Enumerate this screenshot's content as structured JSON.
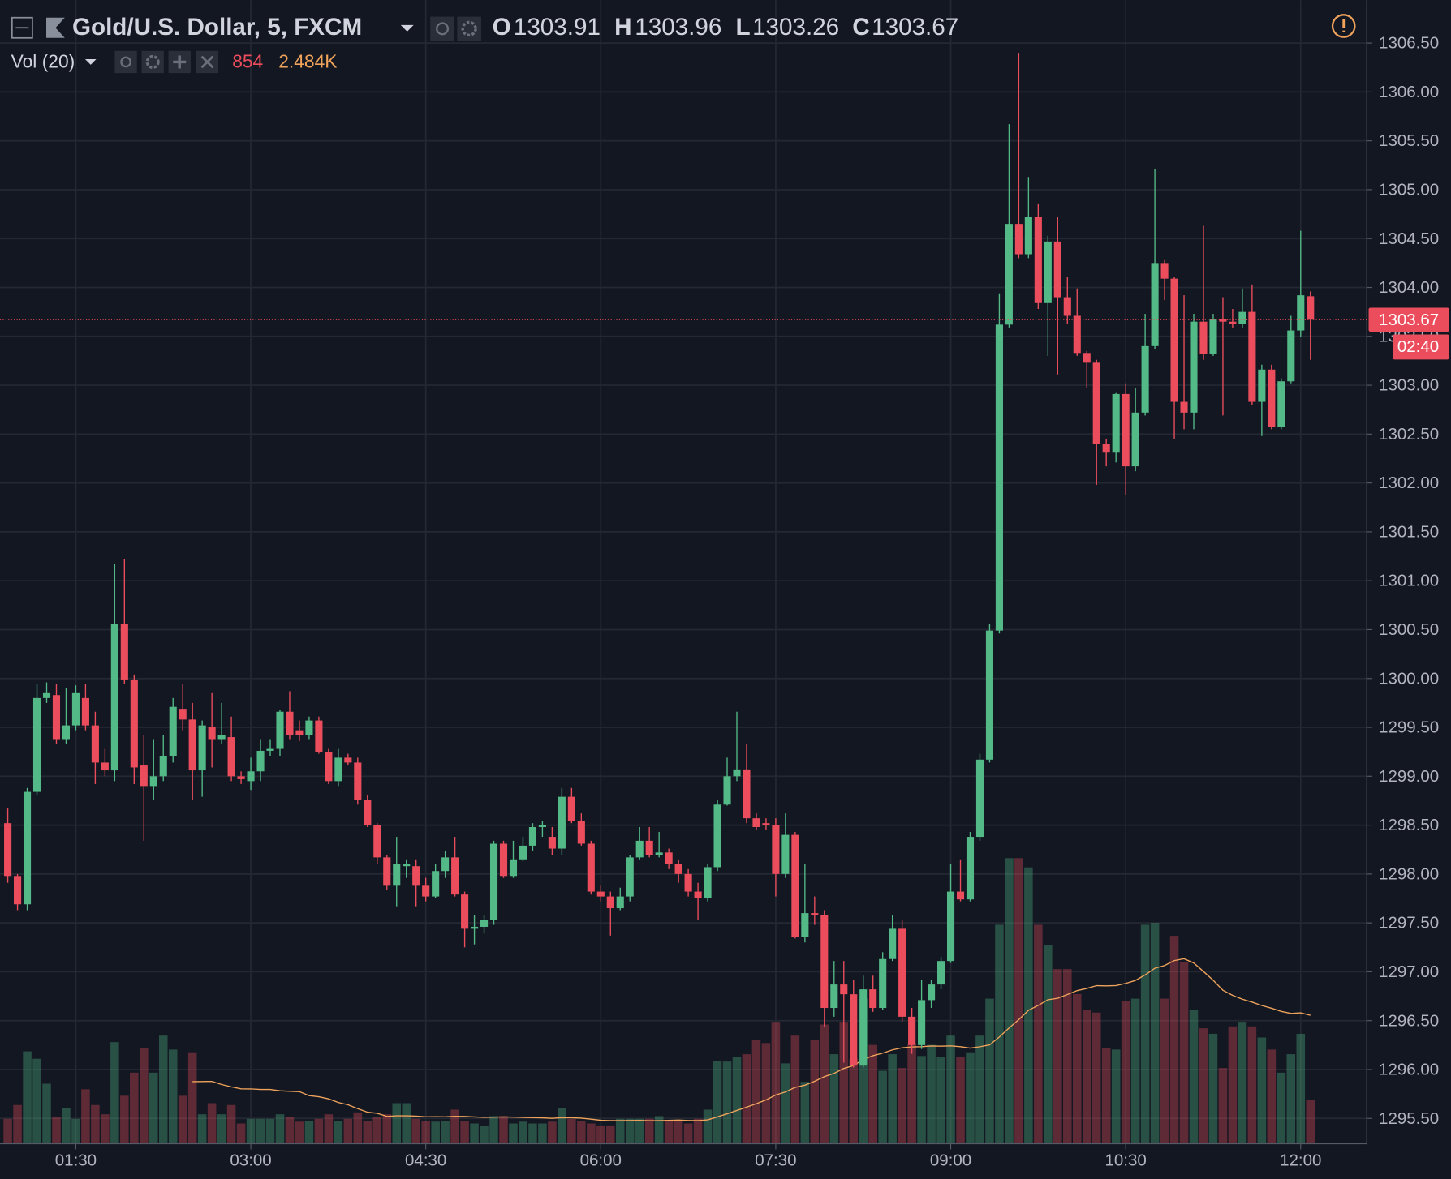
{
  "chart_data": {
    "type": "candlestick",
    "title": "Gold/U.S. Dollar, 5, FXCM",
    "ohlc_letters": [
      "O",
      "H",
      "L",
      "C"
    ],
    "volume_title": "Vol (20)",
    "volume_ma_label": "2.484K",
    "countdown": "02:40",
    "x": [
      55,
      60,
      65,
      70,
      75,
      80,
      85,
      90,
      95,
      100,
      105,
      110,
      115,
      120,
      125,
      130,
      135,
      140,
      145,
      150,
      155,
      160,
      165,
      170,
      175,
      180,
      185,
      190,
      195,
      200,
      205,
      210,
      215,
      220,
      225,
      230,
      235,
      240,
      245,
      250,
      255,
      260,
      265,
      270,
      275,
      280,
      285,
      290,
      295,
      300,
      305,
      310,
      315,
      320,
      325,
      330,
      335,
      340,
      345,
      350,
      355,
      360,
      365,
      370,
      375,
      380,
      385,
      390,
      395,
      400,
      405,
      410,
      415,
      420,
      425,
      430,
      435,
      440,
      445,
      450,
      455,
      460,
      465,
      470,
      475,
      480,
      485,
      490,
      495,
      500,
      505,
      510,
      515,
      520,
      525,
      530,
      535,
      540,
      545,
      550,
      555,
      560,
      565,
      570,
      575,
      580,
      585,
      590,
      595,
      600,
      605,
      610,
      615,
      620,
      625,
      630,
      635,
      640,
      645,
      650,
      655,
      660,
      665,
      670,
      675,
      680,
      685,
      690,
      695,
      700,
      705,
      710,
      715,
      720,
      725
    ],
    "open": [
      1298.52,
      1297.98,
      1297.69,
      1298.84,
      1299.8,
      1299.83,
      1299.38,
      1299.52,
      1299.8,
      1299.52,
      1299.14,
      1299.06,
      1300.56,
      1299.99,
      1299.11,
      1298.9,
      1299.0,
      1299.21,
      1299.69,
      1299.58,
      1299.06,
      1299.5,
      1299.38,
      1299.4,
      1299.0,
      1298.95,
      1299.05,
      1299.26,
      1299.28,
      1299.66,
      1299.47,
      1299.42,
      1299.57,
      1299.25,
      1298.95,
      1299.19,
      1299.14,
      1298.76,
      1298.5,
      1298.17,
      1297.88,
      1298.08,
      1298.08,
      1297.88,
      1297.77,
      1298.03,
      1298.17,
      1297.79,
      1297.44,
      1297.46,
      1297.53,
      1298.31,
      1297.98,
      1298.15,
      1298.29,
      1298.48,
      1298.38,
      1298.26,
      1298.79,
      1298.54,
      1298.31,
      1297.82,
      1297.77,
      1297.65,
      1297.77,
      1298.17,
      1298.34,
      1298.19,
      1298.22,
      1298.1,
      1298.0,
      1297.82,
      1297.75,
      1298.07,
      1298.71,
      1299.0,
      1299.07,
      1298.57,
      1298.52,
      1298.5,
      1298.0,
      1298.4,
      1297.36,
      1297.6,
      1297.58,
      1296.63,
      1296.87,
      1296.77,
      1296.04,
      1296.82,
      1296.63,
      1297.13,
      1297.44,
      1296.54,
      1296.25,
      1296.71,
      1296.87,
      1297.11,
      1297.82,
      1297.74,
      1298.38,
      1299.17,
      1300.49,
      1303.62,
      1304.65,
      1304.34,
      1304.72,
      1303.84,
      1304.47,
      1303.9,
      1303.71,
      1303.33,
      1303.23,
      1302.4,
      1302.31,
      1302.91,
      1302.17,
      1302.72,
      1303.4,
      1304.25,
      1304.09,
      1302.83,
      1302.72,
      1303.65,
      1303.32,
      1303.68,
      1303.65,
      1303.63,
      1303.75,
      1302.83,
      1303.16,
      1302.57,
      1303.04,
      1303.56,
      1303.91
    ],
    "high": [
      1298.67,
      1298.0,
      1298.88,
      1299.94,
      1299.96,
      1299.94,
      1299.9,
      1299.93,
      1299.94,
      1299.66,
      1299.28,
      1301.17,
      1301.22,
      1300.04,
      1299.42,
      1299.38,
      1299.42,
      1299.8,
      1299.94,
      1299.75,
      1299.57,
      1299.85,
      1299.75,
      1299.61,
      1299.05,
      1299.19,
      1299.38,
      1299.38,
      1299.68,
      1299.87,
      1299.57,
      1299.61,
      1299.61,
      1299.28,
      1299.28,
      1299.23,
      1299.19,
      1298.81,
      1298.52,
      1298.19,
      1298.38,
      1298.15,
      1298.15,
      1297.96,
      1298.1,
      1298.24,
      1298.38,
      1297.82,
      1297.58,
      1297.58,
      1298.34,
      1298.34,
      1298.34,
      1298.38,
      1298.52,
      1298.54,
      1298.48,
      1298.88,
      1298.88,
      1298.62,
      1298.34,
      1297.88,
      1297.82,
      1297.86,
      1298.19,
      1298.48,
      1298.48,
      1298.43,
      1298.26,
      1298.15,
      1298.05,
      1297.91,
      1298.1,
      1298.76,
      1299.19,
      1299.66,
      1299.33,
      1298.62,
      1298.57,
      1298.57,
      1298.62,
      1298.43,
      1298.1,
      1297.77,
      1297.63,
      1297.11,
      1297.11,
      1296.92,
      1296.96,
      1296.96,
      1297.2,
      1297.58,
      1297.53,
      1296.63,
      1296.92,
      1296.92,
      1297.15,
      1298.1,
      1298.15,
      1298.43,
      1299.23,
      1300.56,
      1303.94,
      1305.67,
      1306.4,
      1305.13,
      1304.86,
      1304.53,
      1304.72,
      1304.11,
      1303.99,
      1303.35,
      1303.26,
      1302.45,
      1302.92,
      1303.02,
      1302.97,
      1303.73,
      1305.21,
      1304.28,
      1304.11,
      1303.92,
      1303.73,
      1304.63,
      1303.73,
      1303.9,
      1303.78,
      1303.99,
      1304.03,
      1303.21,
      1303.21,
      1303.07,
      1303.71,
      1304.58,
      1303.96
    ],
    "low": [
      1297.91,
      1297.63,
      1297.63,
      1298.81,
      1299.75,
      1299.33,
      1299.33,
      1299.47,
      1299.47,
      1298.92,
      1299.0,
      1298.95,
      1299.94,
      1298.92,
      1298.34,
      1298.76,
      1298.95,
      1299.14,
      1299.47,
      1298.76,
      1298.79,
      1299.09,
      1299.33,
      1298.95,
      1298.92,
      1298.86,
      1298.95,
      1299.21,
      1299.21,
      1299.38,
      1299.36,
      1299.38,
      1299.23,
      1298.92,
      1298.9,
      1299.11,
      1298.71,
      1298.48,
      1298.1,
      1297.84,
      1297.67,
      1297.96,
      1297.67,
      1297.72,
      1297.75,
      1297.96,
      1297.77,
      1297.25,
      1297.28,
      1297.39,
      1297.48,
      1297.96,
      1297.96,
      1298.13,
      1298.24,
      1298.38,
      1298.19,
      1298.19,
      1298.52,
      1298.29,
      1297.79,
      1297.72,
      1297.37,
      1297.63,
      1297.72,
      1298.15,
      1298.17,
      1298.17,
      1298.05,
      1297.91,
      1297.77,
      1297.53,
      1297.72,
      1298.03,
      1298.7,
      1298.95,
      1298.52,
      1298.45,
      1298.45,
      1297.77,
      1297.96,
      1297.34,
      1297.3,
      1297.48,
      1296.44,
      1296.54,
      1296.07,
      1296.02,
      1296.02,
      1296.59,
      1296.61,
      1297.11,
      1296.49,
      1296.16,
      1296.21,
      1296.63,
      1296.82,
      1297.09,
      1297.72,
      1297.72,
      1298.34,
      1299.14,
      1300.46,
      1303.59,
      1304.3,
      1304.3,
      1303.78,
      1303.3,
      1303.11,
      1303.63,
      1303.3,
      1302.97,
      1301.98,
      1302.17,
      1302.21,
      1301.88,
      1302.12,
      1302.69,
      1303.37,
      1303.87,
      1302.45,
      1302.55,
      1302.55,
      1303.26,
      1303.3,
      1302.69,
      1303.59,
      1303.59,
      1302.8,
      1302.48,
      1302.55,
      1302.55,
      1303.02,
      1303.49,
      1303.26
    ],
    "close": [
      1297.98,
      1297.69,
      1298.84,
      1299.8,
      1299.85,
      1299.38,
      1299.52,
      1299.85,
      1299.52,
      1299.14,
      1299.06,
      1300.56,
      1299.99,
      1299.09,
      1298.9,
      1299.0,
      1299.21,
      1299.71,
      1299.58,
      1299.06,
      1299.52,
      1299.38,
      1299.42,
      1299.0,
      1298.97,
      1299.05,
      1299.26,
      1299.28,
      1299.66,
      1299.42,
      1299.42,
      1299.57,
      1299.25,
      1298.95,
      1299.19,
      1299.14,
      1298.76,
      1298.5,
      1298.17,
      1297.88,
      1298.1,
      1298.1,
      1297.88,
      1297.77,
      1298.03,
      1298.17,
      1297.79,
      1297.44,
      1297.46,
      1297.53,
      1298.31,
      1297.98,
      1298.15,
      1298.29,
      1298.48,
      1298.5,
      1298.26,
      1298.79,
      1298.54,
      1298.31,
      1297.82,
      1297.77,
      1297.65,
      1297.77,
      1298.17,
      1298.34,
      1298.19,
      1298.22,
      1298.1,
      1298.0,
      1297.82,
      1297.75,
      1298.07,
      1298.71,
      1299.0,
      1299.07,
      1298.57,
      1298.48,
      1298.5,
      1298.0,
      1298.4,
      1297.36,
      1297.6,
      1297.58,
      1296.63,
      1296.87,
      1296.77,
      1296.04,
      1296.82,
      1296.63,
      1297.13,
      1297.44,
      1296.54,
      1296.25,
      1296.71,
      1296.87,
      1297.11,
      1297.82,
      1297.74,
      1298.38,
      1299.17,
      1300.49,
      1303.62,
      1304.65,
      1304.34,
      1304.72,
      1303.84,
      1304.47,
      1303.9,
      1303.71,
      1303.33,
      1303.23,
      1302.4,
      1302.31,
      1302.91,
      1302.17,
      1302.72,
      1303.4,
      1304.25,
      1304.09,
      1302.83,
      1302.72,
      1303.65,
      1303.32,
      1303.68,
      1303.65,
      1303.63,
      1303.75,
      1302.83,
      1303.16,
      1302.57,
      1303.04,
      1303.56,
      1303.92,
      1303.67
    ],
    "volume": [
      491,
      763,
      1817,
      1672,
      1181,
      527,
      709,
      491,
      1072,
      763,
      581,
      1999,
      945,
      1399,
      1890,
      1399,
      2126,
      1853,
      945,
      1799,
      581,
      799,
      581,
      763,
      400,
      491,
      491,
      491,
      581,
      527,
      436,
      454,
      491,
      581,
      454,
      491,
      618,
      454,
      527,
      581,
      799,
      799,
      491,
      454,
      436,
      454,
      672,
      454,
      400,
      345,
      545,
      545,
      400,
      436,
      400,
      400,
      436,
      709,
      491,
      454,
      400,
      345,
      345,
      491,
      491,
      491,
      491,
      545,
      454,
      454,
      400,
      491,
      672,
      1635,
      1617,
      1708,
      1762,
      2035,
      1981,
      2398,
      1581,
      2126,
      1217,
      2035,
      2344,
      1762,
      2398,
      1672,
      2853,
      1944,
      1435,
      1762,
      1490,
      1981,
      1726,
      1944,
      1708,
      2126,
      1708,
      1799,
      2126,
      2853,
      4306,
      5615,
      5615,
      5433,
      4306,
      3907,
      3434,
      3434,
      2944,
      2635,
      2580,
      1890,
      1853,
      2798,
      2853,
      4306,
      4343,
      2853,
      4088,
      3579,
      2635,
      2271,
      2162,
      1490,
      2308,
      2398,
      2308,
      2090,
      1853,
      1399,
      1762,
      2162,
      854
    ],
    "volume_ma_period": 20,
    "xlim": [
      51,
      754
    ],
    "xticks": [
      {
        "value": 90,
        "label": "01:30"
      },
      {
        "value": 180,
        "label": "03:00"
      },
      {
        "value": 270,
        "label": "04:30"
      },
      {
        "value": 360,
        "label": "06:00"
      },
      {
        "value": 450,
        "label": "07:30"
      },
      {
        "value": 540,
        "label": "09:00"
      },
      {
        "value": 630,
        "label": "10:30"
      },
      {
        "value": 720,
        "label": "12:00"
      }
    ],
    "ylim": [
      1295.24,
      1306.94
    ],
    "yticks": [
      {
        "value": 1295.5,
        "label": "1295.50"
      },
      {
        "value": 1296,
        "label": "1296.00"
      },
      {
        "value": 1296.5,
        "label": "1296.50"
      },
      {
        "value": 1297,
        "label": "1297.00"
      },
      {
        "value": 1297.5,
        "label": "1297.50"
      },
      {
        "value": 1298,
        "label": "1298.00"
      },
      {
        "value": 1298.5,
        "label": "1298.50"
      },
      {
        "value": 1299,
        "label": "1299.00"
      },
      {
        "value": 1299.5,
        "label": "1299.50"
      },
      {
        "value": 1300,
        "label": "1300.00"
      },
      {
        "value": 1300.5,
        "label": "1300.50"
      },
      {
        "value": 1301,
        "label": "1301.00"
      },
      {
        "value": 1301.5,
        "label": "1301.50"
      },
      {
        "value": 1302,
        "label": "1302.00"
      },
      {
        "value": 1302.5,
        "label": "1302.50"
      },
      {
        "value": 1303,
        "label": "1303.00"
      },
      {
        "value": 1303.5,
        "label": "1303.50"
      },
      {
        "value": 1304,
        "label": "1304.00"
      },
      {
        "value": 1304.5,
        "label": "1304.50"
      },
      {
        "value": 1305,
        "label": "1305.00"
      },
      {
        "value": 1305.5,
        "label": "1305.50"
      },
      {
        "value": 1306,
        "label": "1306.00"
      },
      {
        "value": 1306.5,
        "label": "1306.50"
      }
    ],
    "vol_lim": [
      0,
      22480
    ],
    "grid": true,
    "up_color": "#53b987",
    "down_color": "#eb4d5c",
    "ma_color": "#f0a35b"
  }
}
